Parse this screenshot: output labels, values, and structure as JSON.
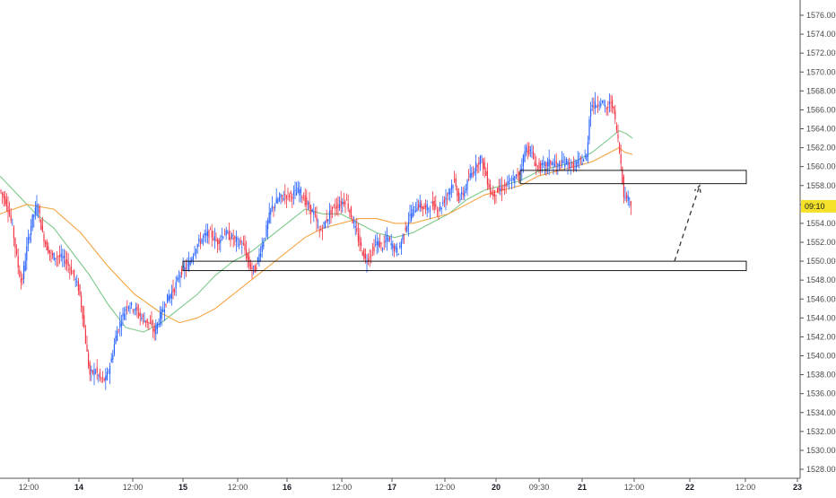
{
  "chart_data": {
    "type": "candlestick",
    "y_axis": {
      "position": "right",
      "min": 1526,
      "max": 1577,
      "tick_labels": [
        "1528.000",
        "1530.000",
        "1532.000",
        "1534.000",
        "1536.000",
        "1538.000",
        "1540.000",
        "1542.000",
        "1544.000",
        "1546.000",
        "1548.000",
        "1550.000",
        "1552.000",
        "1554.000",
        "1556.000",
        "1558.000",
        "1560.000",
        "1562.000",
        "1564.000",
        "1566.000",
        "1568.000",
        "1570.000",
        "1572.000",
        "1574.000",
        "1576.000"
      ]
    },
    "x_axis": {
      "tick_labels": [
        {
          "text": "12:00",
          "bold": false
        },
        {
          "text": "14",
          "bold": true
        },
        {
          "text": "12:00",
          "bold": false
        },
        {
          "text": "15",
          "bold": true
        },
        {
          "text": "12:00",
          "bold": false
        },
        {
          "text": "16",
          "bold": true
        },
        {
          "text": "12:00",
          "bold": false
        },
        {
          "text": "17",
          "bold": true
        },
        {
          "text": "12:00",
          "bold": false
        },
        {
          "text": "20",
          "bold": true
        },
        {
          "text": "09:30",
          "bold": false
        },
        {
          "text": "21",
          "bold": true
        },
        {
          "text": "12:00",
          "bold": false
        },
        {
          "text": "22",
          "bold": true
        },
        {
          "text": "12:00",
          "bold": false
        },
        {
          "text": "23",
          "bold": true
        }
      ]
    },
    "last_price_label": "09:10",
    "last_price_value": 1555.8,
    "price_path": [
      [
        0,
        1557.5
      ],
      [
        8,
        1556.0
      ],
      [
        14,
        1553.5
      ],
      [
        20,
        1549.5
      ],
      [
        24,
        1547.5
      ],
      [
        30,
        1551.5
      ],
      [
        36,
        1554.5
      ],
      [
        42,
        1556.0
      ],
      [
        47,
        1553.0
      ],
      [
        52,
        1551.5
      ],
      [
        58,
        1550.5
      ],
      [
        66,
        1550.5
      ],
      [
        74,
        1550.0
      ],
      [
        82,
        1548.5
      ],
      [
        88,
        1547.0
      ],
      [
        92,
        1544.5
      ],
      [
        96,
        1541.0
      ],
      [
        100,
        1538.0
      ],
      [
        106,
        1538.5
      ],
      [
        112,
        1537.5
      ],
      [
        118,
        1537.5
      ],
      [
        124,
        1539.5
      ],
      [
        130,
        1542.5
      ],
      [
        136,
        1544.0
      ],
      [
        142,
        1545.5
      ],
      [
        150,
        1545.0
      ],
      [
        158,
        1544.0
      ],
      [
        166,
        1543.5
      ],
      [
        172,
        1542.5
      ],
      [
        178,
        1544.0
      ],
      [
        186,
        1546.0
      ],
      [
        194,
        1547.0
      ],
      [
        202,
        1549.0
      ],
      [
        210,
        1549.5
      ],
      [
        218,
        1551.5
      ],
      [
        226,
        1552.5
      ],
      [
        234,
        1553.0
      ],
      [
        242,
        1552.0
      ],
      [
        250,
        1553.0
      ],
      [
        258,
        1552.5
      ],
      [
        266,
        1552.0
      ],
      [
        272,
        1551.5
      ],
      [
        278,
        1549.5
      ],
      [
        284,
        1549.0
      ],
      [
        290,
        1551.0
      ],
      [
        296,
        1553.0
      ],
      [
        302,
        1555.5
      ],
      [
        310,
        1556.5
      ],
      [
        318,
        1557.0
      ],
      [
        326,
        1557.0
      ],
      [
        334,
        1557.5
      ],
      [
        342,
        1556.0
      ],
      [
        350,
        1555.0
      ],
      [
        356,
        1553.0
      ],
      [
        362,
        1554.0
      ],
      [
        370,
        1555.5
      ],
      [
        378,
        1556.0
      ],
      [
        386,
        1556.5
      ],
      [
        394,
        1554.0
      ],
      [
        402,
        1551.5
      ],
      [
        408,
        1550.0
      ],
      [
        414,
        1551.0
      ],
      [
        420,
        1552.0
      ],
      [
        426,
        1551.5
      ],
      [
        432,
        1552.5
      ],
      [
        438,
        1551.5
      ],
      [
        444,
        1551.0
      ],
      [
        450,
        1553.0
      ],
      [
        458,
        1555.0
      ],
      [
        466,
        1556.0
      ],
      [
        474,
        1555.5
      ],
      [
        482,
        1556.0
      ],
      [
        490,
        1555.5
      ],
      [
        498,
        1557.0
      ],
      [
        506,
        1558.5
      ],
      [
        512,
        1556.5
      ],
      [
        518,
        1557.5
      ],
      [
        524,
        1559.0
      ],
      [
        530,
        1560.0
      ],
      [
        536,
        1561.0
      ],
      [
        542,
        1559.0
      ],
      [
        548,
        1557.0
      ],
      [
        556,
        1557.5
      ],
      [
        564,
        1558.0
      ],
      [
        572,
        1558.5
      ],
      [
        580,
        1559.5
      ],
      [
        586,
        1562.0
      ],
      [
        592,
        1561.5
      ],
      [
        598,
        1560.0
      ],
      [
        606,
        1560.0
      ],
      [
        614,
        1560.5
      ],
      [
        622,
        1560.0
      ],
      [
        630,
        1560.5
      ],
      [
        638,
        1560.0
      ],
      [
        646,
        1560.5
      ],
      [
        654,
        1561.0
      ],
      [
        658,
        1566.5
      ],
      [
        664,
        1566.5
      ],
      [
        670,
        1567.0
      ],
      [
        676,
        1566.0
      ],
      [
        682,
        1567.0
      ],
      [
        688,
        1563.5
      ],
      [
        692,
        1560.5
      ],
      [
        696,
        1556.5
      ],
      [
        700,
        1557.0
      ],
      [
        704,
        1555.8
      ]
    ],
    "moving_averages": [
      {
        "color": "#7cc98a",
        "points": [
          [
            0,
            1559.0
          ],
          [
            20,
            1557.0
          ],
          [
            40,
            1555.0
          ],
          [
            60,
            1553.5
          ],
          [
            80,
            1551.0
          ],
          [
            100,
            1548.5
          ],
          [
            120,
            1545.5
          ],
          [
            140,
            1543.0
          ],
          [
            160,
            1542.5
          ],
          [
            180,
            1543.5
          ],
          [
            200,
            1545.0
          ],
          [
            220,
            1546.5
          ],
          [
            240,
            1548.5
          ],
          [
            260,
            1550.0
          ],
          [
            280,
            1551.0
          ],
          [
            300,
            1552.5
          ],
          [
            320,
            1554.0
          ],
          [
            340,
            1555.5
          ],
          [
            360,
            1555.0
          ],
          [
            380,
            1555.0
          ],
          [
            400,
            1554.0
          ],
          [
            420,
            1553.0
          ],
          [
            440,
            1552.5
          ],
          [
            460,
            1553.0
          ],
          [
            480,
            1554.0
          ],
          [
            500,
            1555.0
          ],
          [
            520,
            1556.5
          ],
          [
            540,
            1557.5
          ],
          [
            560,
            1558.0
          ],
          [
            580,
            1558.5
          ],
          [
            600,
            1559.5
          ],
          [
            620,
            1560.0
          ],
          [
            640,
            1560.5
          ],
          [
            660,
            1561.5
          ],
          [
            680,
            1563.0
          ],
          [
            690,
            1563.8
          ],
          [
            698,
            1563.5
          ],
          [
            705,
            1563.0
          ]
        ]
      },
      {
        "color": "#f5a441",
        "points": [
          [
            0,
            1555.0
          ],
          [
            30,
            1556.0
          ],
          [
            60,
            1555.5
          ],
          [
            90,
            1553.0
          ],
          [
            120,
            1549.5
          ],
          [
            150,
            1546.5
          ],
          [
            180,
            1544.5
          ],
          [
            200,
            1543.5
          ],
          [
            220,
            1544.0
          ],
          [
            240,
            1545.0
          ],
          [
            260,
            1546.5
          ],
          [
            280,
            1548.0
          ],
          [
            300,
            1549.5
          ],
          [
            320,
            1551.0
          ],
          [
            340,
            1552.5
          ],
          [
            360,
            1553.5
          ],
          [
            380,
            1554.0
          ],
          [
            400,
            1554.5
          ],
          [
            420,
            1554.5
          ],
          [
            440,
            1554.0
          ],
          [
            460,
            1554.0
          ],
          [
            480,
            1554.5
          ],
          [
            500,
            1555.0
          ],
          [
            520,
            1556.0
          ],
          [
            540,
            1557.0
          ],
          [
            560,
            1557.5
          ],
          [
            580,
            1558.0
          ],
          [
            600,
            1559.0
          ],
          [
            620,
            1559.5
          ],
          [
            640,
            1560.0
          ],
          [
            660,
            1560.5
          ],
          [
            680,
            1561.5
          ],
          [
            690,
            1562.0
          ],
          [
            697,
            1561.5
          ],
          [
            705,
            1561.3
          ]
        ]
      }
    ],
    "zones": [
      {
        "x_start": 580,
        "x_end": 832,
        "y_low": 1558.2,
        "y_high": 1559.6
      },
      {
        "x_start": 204,
        "x_end": 832,
        "y_low": 1549.0,
        "y_high": 1550.0
      }
    ],
    "projection_arrow": {
      "from": [
        752,
        1550.0
      ],
      "to": [
        780,
        1558.0
      ]
    },
    "colors": {
      "up": "#2962ff",
      "down": "#f23645",
      "axis": "#555555",
      "zone": "#000000",
      "price_label_bg": "#f5e12a"
    }
  }
}
